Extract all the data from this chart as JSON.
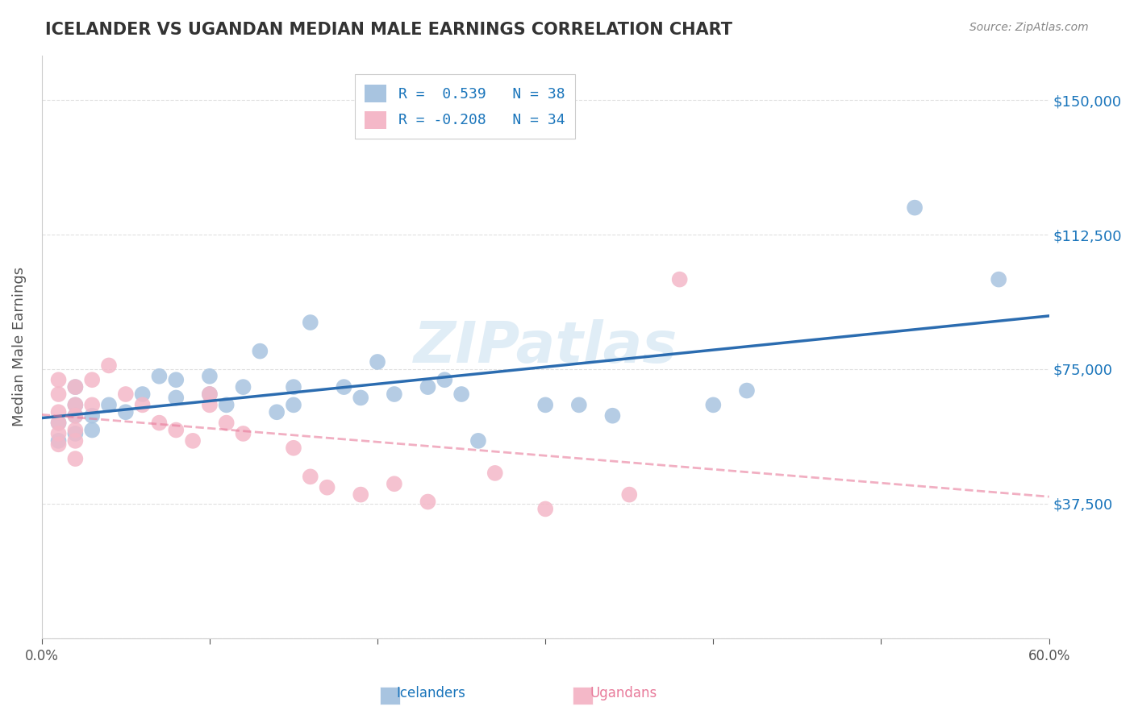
{
  "title": "ICELANDER VS UGANDAN MEDIAN MALE EARNINGS CORRELATION CHART",
  "source_text": "Source: ZipAtlas.com",
  "xlabel": "",
  "ylabel": "Median Male Earnings",
  "xlim": [
    0.0,
    0.6
  ],
  "ylim": [
    0,
    162500
  ],
  "yticks": [
    0,
    37500,
    75000,
    112500,
    150000
  ],
  "ytick_labels": [
    "",
    "$37,500",
    "$75,000",
    "$112,500",
    "$150,000"
  ],
  "xticks": [
    0.0,
    0.1,
    0.2,
    0.3,
    0.4,
    0.5,
    0.6
  ],
  "xtick_labels": [
    "0.0%",
    "",
    "",
    "",
    "",
    "",
    "60.0%"
  ],
  "legend_r1": "R =  0.539   N = 38",
  "legend_r2": "R = -0.208   N = 34",
  "icelander_color": "#a8c4e0",
  "ugandan_color": "#f4b8c8",
  "icelander_line_color": "#2b6cb0",
  "ugandan_line_color": "#e87a9a",
  "ugandan_line_dashed": true,
  "background_color": "#ffffff",
  "watermark": "ZIPatlas",
  "icelander_R": 0.539,
  "icelander_N": 38,
  "ugandan_R": -0.208,
  "ugandan_N": 34,
  "icelanders_x": [
    0.01,
    0.01,
    0.02,
    0.02,
    0.02,
    0.02,
    0.03,
    0.03,
    0.04,
    0.05,
    0.06,
    0.07,
    0.08,
    0.08,
    0.1,
    0.1,
    0.11,
    0.12,
    0.13,
    0.14,
    0.15,
    0.15,
    0.16,
    0.18,
    0.19,
    0.2,
    0.21,
    0.23,
    0.24,
    0.25,
    0.26,
    0.3,
    0.32,
    0.34,
    0.4,
    0.42,
    0.52,
    0.57
  ],
  "icelanders_y": [
    55000,
    60000,
    57000,
    62000,
    65000,
    70000,
    62000,
    58000,
    65000,
    63000,
    68000,
    73000,
    67000,
    72000,
    68000,
    73000,
    65000,
    70000,
    80000,
    63000,
    65000,
    70000,
    88000,
    70000,
    67000,
    77000,
    68000,
    70000,
    72000,
    68000,
    55000,
    65000,
    65000,
    62000,
    65000,
    69000,
    120000,
    100000
  ],
  "ugandans_x": [
    0.01,
    0.01,
    0.01,
    0.01,
    0.01,
    0.01,
    0.02,
    0.02,
    0.02,
    0.02,
    0.02,
    0.02,
    0.03,
    0.03,
    0.04,
    0.05,
    0.06,
    0.07,
    0.08,
    0.09,
    0.1,
    0.1,
    0.11,
    0.12,
    0.15,
    0.16,
    0.17,
    0.19,
    0.21,
    0.23,
    0.27,
    0.3,
    0.35,
    0.38
  ],
  "ugandans_y": [
    63000,
    68000,
    72000,
    60000,
    57000,
    54000,
    65000,
    70000,
    62000,
    58000,
    55000,
    50000,
    65000,
    72000,
    76000,
    68000,
    65000,
    60000,
    58000,
    55000,
    65000,
    68000,
    60000,
    57000,
    53000,
    45000,
    42000,
    40000,
    43000,
    38000,
    46000,
    36000,
    40000,
    100000
  ]
}
